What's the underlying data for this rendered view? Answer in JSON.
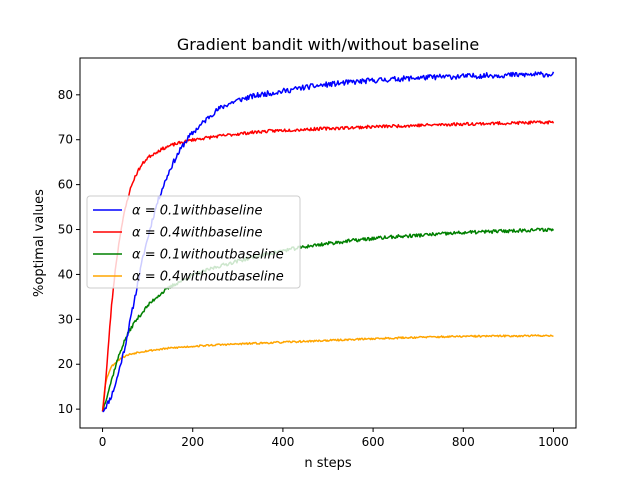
{
  "chart_data": {
    "type": "line",
    "title": "Gradient bandit with/without baseline",
    "xlabel": "n steps",
    "ylabel": "%optimal values",
    "xlim": [
      -50,
      1050
    ],
    "ylim": [
      5.8,
      88.2
    ],
    "xticks": [
      0,
      200,
      400,
      600,
      800,
      1000
    ],
    "yticks": [
      10,
      20,
      30,
      40,
      50,
      60,
      70,
      80
    ],
    "grid": false,
    "legend_position": "center-left",
    "series": [
      {
        "name": "α = 0.1withbaseline",
        "legend_label": "0.1withbaseline",
        "color": "#0000ff",
        "x": [
          0,
          10,
          20,
          30,
          40,
          50,
          60,
          70,
          80,
          90,
          100,
          110,
          120,
          130,
          140,
          150,
          160,
          170,
          180,
          190,
          200,
          220,
          240,
          260,
          280,
          300,
          330,
          360,
          400,
          450,
          500,
          550,
          600,
          650,
          700,
          750,
          800,
          850,
          900,
          950,
          1000
        ],
        "y": [
          9.5,
          11,
          13,
          16,
          20,
          24,
          29,
          34,
          39,
          44,
          48,
          52,
          55.5,
          58.5,
          61,
          63.5,
          65.5,
          67.3,
          69,
          70.4,
          71.5,
          73.5,
          75.5,
          77,
          78,
          78.8,
          79.6,
          80.2,
          80.8,
          81.7,
          82.3,
          82.8,
          83.2,
          83.5,
          83.8,
          84,
          84.1,
          84.3,
          84.4,
          84.5,
          84.6
        ],
        "noise": 0.6,
        "seed": 11
      },
      {
        "name": "α = 0.4withbaseline",
        "legend_label": "0.4withbaseline",
        "color": "#ff0000",
        "x": [
          0,
          5,
          10,
          15,
          20,
          25,
          30,
          40,
          50,
          60,
          70,
          80,
          90,
          100,
          120,
          140,
          160,
          180,
          200,
          250,
          300,
          350,
          400,
          450,
          500,
          600,
          700,
          800,
          900,
          1000
        ],
        "y": [
          9.5,
          14,
          20,
          27,
          33,
          38,
          42.5,
          49.5,
          54.5,
          58.5,
          61.3,
          63.3,
          64.8,
          66,
          67.3,
          68.3,
          69,
          69.5,
          70,
          70.7,
          71.3,
          71.8,
          72.1,
          72.3,
          72.5,
          72.9,
          73.2,
          73.5,
          73.7,
          73.9
        ],
        "noise": 0.35,
        "seed": 23
      },
      {
        "name": "α = 0.1withoutbaseline",
        "legend_label": "0.1withoutbaseline",
        "color": "#008000",
        "x": [
          0,
          10,
          20,
          30,
          40,
          50,
          60,
          70,
          80,
          100,
          120,
          140,
          160,
          180,
          200,
          250,
          300,
          350,
          400,
          450,
          500,
          550,
          600,
          650,
          700,
          750,
          800,
          850,
          900,
          950,
          1000
        ],
        "y": [
          9.5,
          13,
          16.5,
          20,
          23,
          25.5,
          27.5,
          29.2,
          30.5,
          33,
          35,
          36.5,
          37.8,
          38.8,
          39.8,
          41.6,
          43,
          44.2,
          45.3,
          46.2,
          46.9,
          47.5,
          48,
          48.4,
          48.7,
          49,
          49.3,
          49.5,
          49.7,
          49.9,
          50
        ],
        "noise": 0.4,
        "seed": 37
      },
      {
        "name": "α = 0.4withoutbaseline",
        "legend_label": "0.4withoutbaseline",
        "color": "#ffa500",
        "x": [
          0,
          3,
          6,
          10,
          15,
          20,
          25,
          30,
          40,
          50,
          60,
          80,
          100,
          150,
          200,
          250,
          300,
          400,
          500,
          600,
          700,
          800,
          900,
          1000
        ],
        "y": [
          9.5,
          13,
          15.5,
          17,
          18.5,
          19.5,
          20,
          20.5,
          21.3,
          21.8,
          22.2,
          22.7,
          23,
          23.6,
          24,
          24.3,
          24.5,
          24.9,
          25.3,
          25.7,
          26,
          26.2,
          26.3,
          26.4
        ],
        "noise": 0.2,
        "seed": 53
      }
    ]
  }
}
